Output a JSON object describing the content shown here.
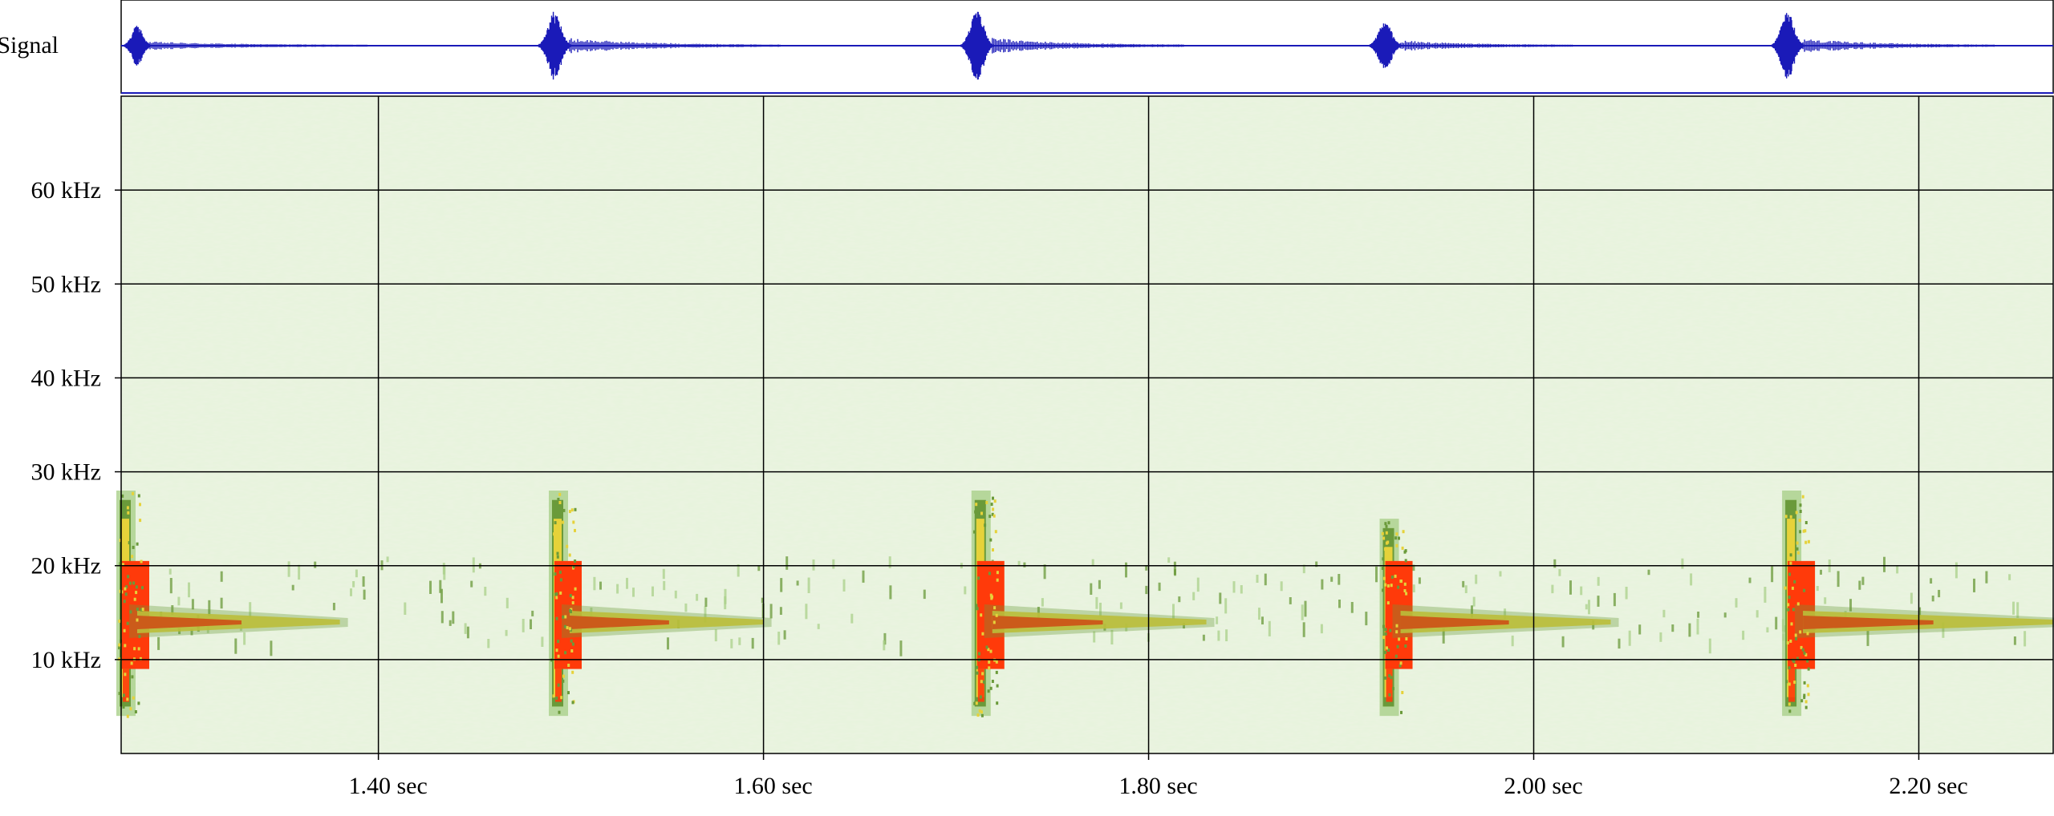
{
  "colors": {
    "background": "#ffffff",
    "waveform": "#1a1ab8",
    "spectrogram_base": "#eaf3e0",
    "noise_light": "#cfe6b6",
    "noise_mid": "#a9d08a",
    "energy_low": "#6a9a3a",
    "energy_mid": "#e6d23a",
    "energy_high": "#ff3a0a",
    "grid": "#000000"
  },
  "chart_data": [
    {
      "type": "line",
      "title": "",
      "ylabel": "Signal",
      "xlabel": "",
      "xlim": [
        1.2664,
        2.2698
      ],
      "grid": false,
      "events": [
        {
          "t": 1.2664,
          "amplitude": 0.55,
          "decay": 0.12
        },
        {
          "t": 1.491,
          "amplitude": 0.95,
          "decay": 0.11
        },
        {
          "t": 1.7105,
          "amplitude": 1.0,
          "decay": 0.1
        },
        {
          "t": 1.9225,
          "amplitude": 0.65,
          "decay": 0.09
        },
        {
          "t": 2.1315,
          "amplitude": 0.9,
          "decay": 0.1
        }
      ]
    },
    {
      "type": "heatmap",
      "title": "",
      "xlabel": "",
      "ylabel": "",
      "xlim": [
        1.2664,
        2.2698
      ],
      "ylim": [
        0,
        70
      ],
      "grid": true,
      "x_ticks": [
        1.4,
        1.6,
        1.8,
        2.0,
        2.2
      ],
      "x_tick_labels": [
        "1.40 sec",
        "1.60 sec",
        "1.80 sec",
        "2.00 sec",
        "2.20 sec"
      ],
      "y_ticks": [
        10,
        20,
        30,
        40,
        50,
        60
      ],
      "y_tick_labels": [
        "10 kHz",
        "20 kHz",
        "30 kHz",
        "40 kHz",
        "50 kHz",
        "60 kHz"
      ],
      "calls": [
        {
          "t": 1.2664,
          "f_low": 4,
          "f_high": 28,
          "tail_end": 1.38,
          "tail_freq": 14
        },
        {
          "t": 1.491,
          "f_low": 4,
          "f_high": 28,
          "tail_end": 1.6,
          "tail_freq": 14
        },
        {
          "t": 1.7105,
          "f_low": 4,
          "f_high": 28,
          "tail_end": 1.83,
          "tail_freq": 14
        },
        {
          "t": 1.9225,
          "f_low": 4,
          "f_high": 25,
          "tail_end": 2.04,
          "tail_freq": 14
        },
        {
          "t": 2.1315,
          "f_low": 4,
          "f_high": 28,
          "tail_end": 2.2698,
          "tail_freq": 14
        }
      ]
    }
  ]
}
